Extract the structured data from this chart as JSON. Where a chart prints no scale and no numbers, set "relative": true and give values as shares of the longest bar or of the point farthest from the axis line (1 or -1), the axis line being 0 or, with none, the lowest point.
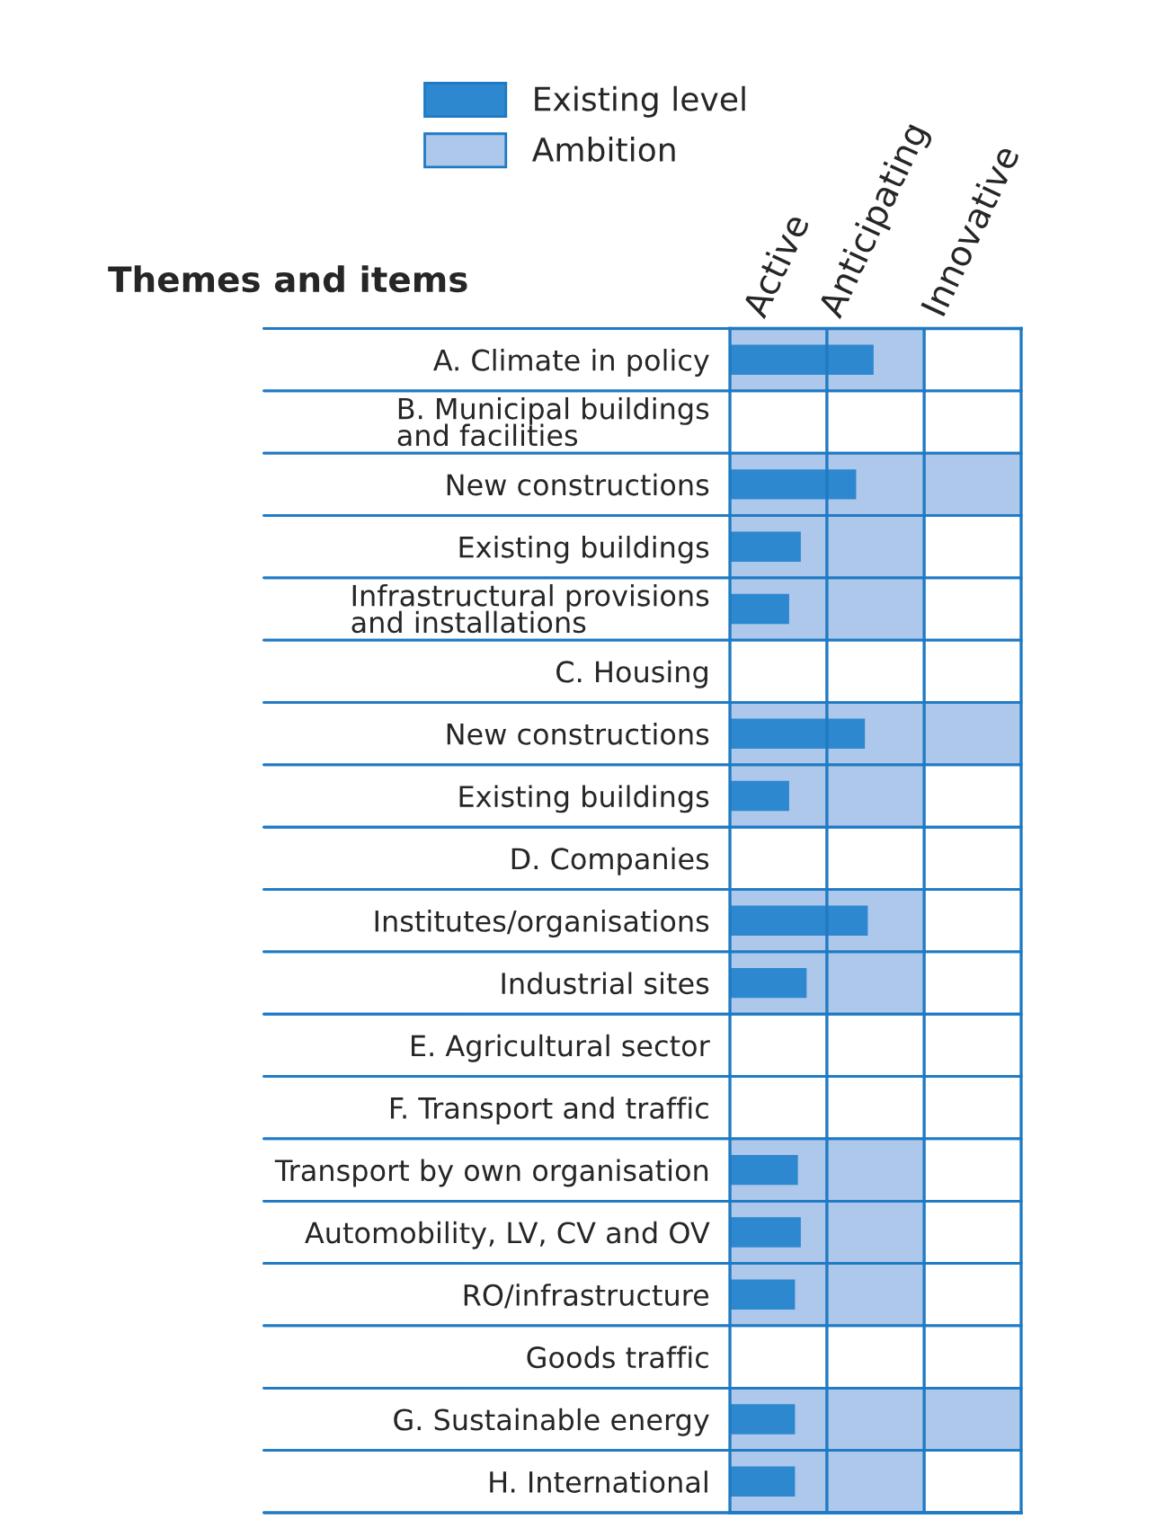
{
  "chart_data": {
    "type": "bar",
    "orientation": "horizontal",
    "relative": true,
    "ylabel": "Themes and items",
    "categories": [
      "A. Climate in policy",
      "B. Municipal buildings\nand facilities",
      "New constructions",
      "Existing buildings",
      "Infrastructural provisions\nand installations",
      "C. Housing",
      "New constructions",
      "Existing buildings",
      "D. Companies",
      "Institutes/organisations",
      "Industrial sites",
      "E. Agricultural sector",
      "F. Transport and traffic",
      "Transport by own organisation",
      "Automobility, LV, CV and OV",
      "RO/infrastructure",
      "Goods traffic",
      "G. Sustainable energy",
      "H. International"
    ],
    "series": [
      {
        "name": "Ambition",
        "color": "#adc8ea",
        "values": [
          0.67,
          null,
          1,
          0.67,
          0.67,
          null,
          1,
          0.67,
          null,
          0.67,
          0.67,
          null,
          null,
          0.67,
          0.67,
          0.67,
          null,
          1,
          0.67
        ]
      },
      {
        "name": "Existing level",
        "color": "#2e88d0",
        "values": [
          0.49,
          null,
          0.43,
          0.24,
          0.2,
          null,
          0.46,
          0.2,
          null,
          0.47,
          0.26,
          null,
          null,
          0.23,
          0.24,
          0.22,
          null,
          0.22,
          0.22
        ]
      }
    ],
    "annotations": [
      "Active",
      "Anticipating",
      "Innovative"
    ],
    "ref_lines": [
      {
        "axis": "x",
        "value": 0.333
      },
      {
        "axis": "x",
        "value": 0.667
      }
    ],
    "grid": "y",
    "legend": "top left"
  }
}
